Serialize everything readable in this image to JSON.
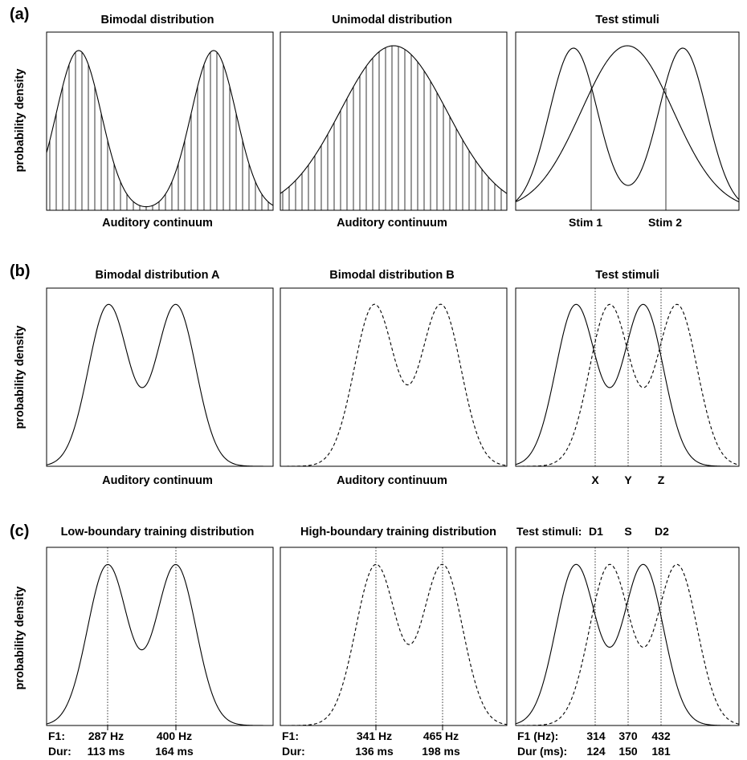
{
  "figure": {
    "row_a": {
      "label": "(a)",
      "ylabel": "probability density",
      "panels": [
        {
          "title": "Bimodal distribution",
          "xlabel": "Auditory continuum"
        },
        {
          "title": "Unimodal distribution",
          "xlabel": "Auditory continuum"
        },
        {
          "title": "Test stimuli",
          "stim1": "Stim 1",
          "stim2": "Stim 2"
        }
      ]
    },
    "row_b": {
      "label": "(b)",
      "ylabel": "probability density",
      "panels": [
        {
          "title": "Bimodal distribution A",
          "xlabel": "Auditory continuum"
        },
        {
          "title": "Bimodal distribution B",
          "xlabel": "Auditory continuum"
        },
        {
          "title": "Test stimuli",
          "x": "X",
          "y": "Y",
          "z": "Z"
        }
      ]
    },
    "row_c": {
      "label": "(c)",
      "ylabel": "probability density",
      "panels": [
        {
          "title": "Low-boundary training distribution",
          "f1": "F1:",
          "dur": "Dur:",
          "f1_a": "287 Hz",
          "f1_b": "400 Hz",
          "dur_a": "113 ms",
          "dur_b": "164 ms"
        },
        {
          "title": "High-boundary training distribution",
          "f1": "F1:",
          "dur": "Dur:",
          "f1_a": "341 Hz",
          "f1_b": "465 Hz",
          "dur_a": "136 ms",
          "dur_b": "198 ms"
        },
        {
          "title": "Test stimuli:",
          "d1": "D1",
          "s": "S",
          "d2": "D2",
          "f1": "F1 (Hz):",
          "dur": "Dur (ms):",
          "f1_d1": "314",
          "f1_s": "370",
          "f1_d2": "432",
          "dur_d1": "124",
          "dur_s": "150",
          "dur_d2": "181"
        }
      ]
    }
  }
}
